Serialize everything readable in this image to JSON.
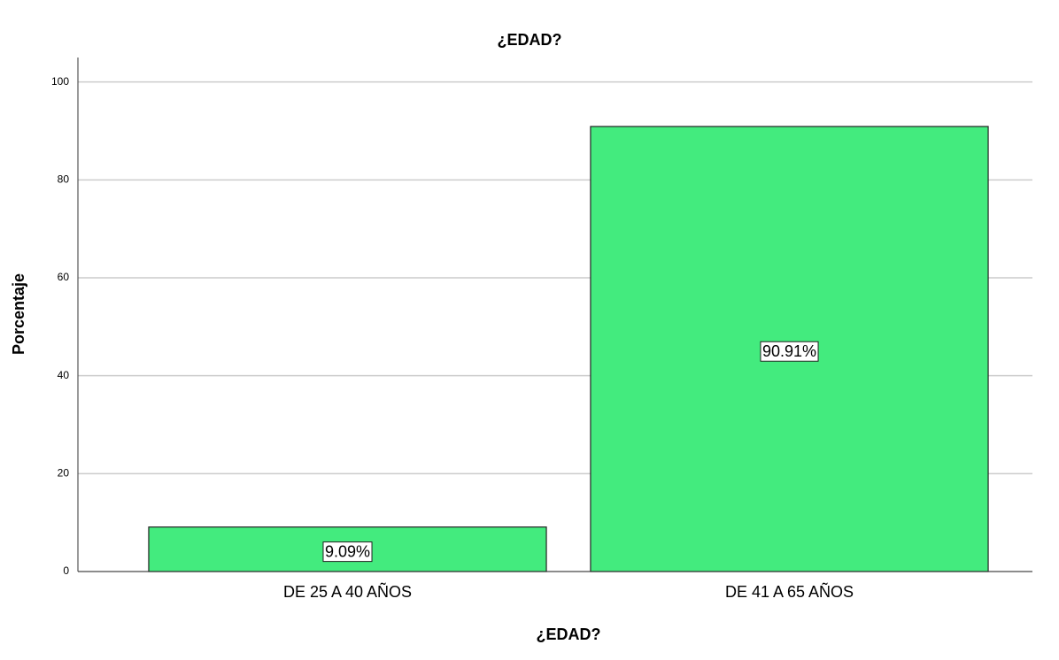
{
  "chart_data": {
    "type": "bar",
    "title": "¿EDAD?",
    "x_label": "¿EDAD?",
    "y_label": "Porcentaje",
    "categories": [
      "DE 25 A 40 AÑOS",
      "DE 41 A 65 AÑOS"
    ],
    "values": [
      9.09,
      90.91
    ],
    "value_labels": [
      "9.09%",
      "90.91%"
    ],
    "color": "#43eb7e",
    "ylim": [
      0,
      105
    ],
    "yticks": [
      0,
      20,
      40,
      60,
      80,
      100
    ],
    "grid": true
  }
}
